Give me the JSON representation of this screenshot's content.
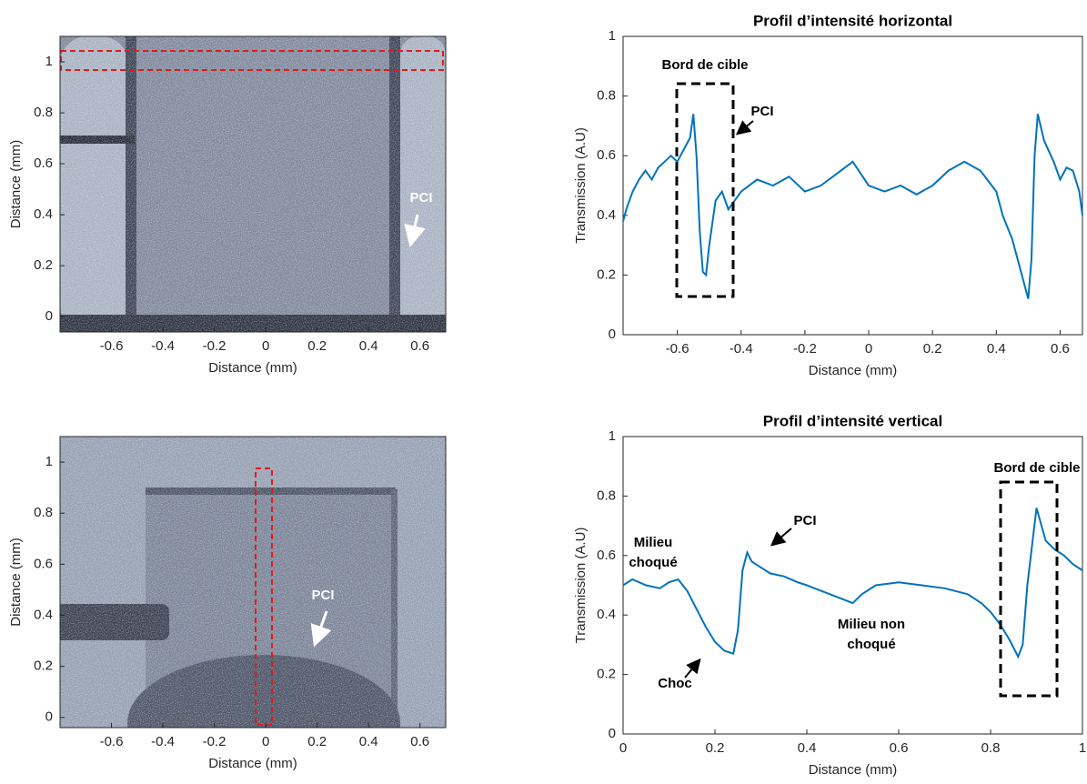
{
  "chart_data": [
    {
      "type": "image",
      "xlabel": "Distance (mm)",
      "ylabel": "Distance (mm)",
      "xlim": [
        -0.8,
        0.7
      ],
      "ylim": [
        -0.06,
        1.1
      ],
      "xticks": [
        -0.6,
        -0.4,
        -0.2,
        0,
        0.2,
        0.4,
        0.6
      ],
      "yticks": [
        0,
        0.2,
        0.4,
        0.6,
        0.8,
        1
      ],
      "annotations": [
        {
          "text": [
            "PCI"
          ]
        }
      ]
    },
    {
      "type": "line",
      "title": "Profil d’intensité horizontal",
      "xlabel": "Distance (mm)",
      "ylabel": "Transmission (A.U)",
      "xlim": [
        -0.77,
        0.67
      ],
      "ylim": [
        0,
        1
      ],
      "xticks": [
        -0.6,
        -0.4,
        -0.2,
        0,
        0.2,
        0.4,
        0.6
      ],
      "yticks": [
        0,
        0.2,
        0.4,
        0.6,
        0.8,
        1
      ],
      "color": "#0072bd",
      "x": [
        -0.77,
        -0.76,
        -0.74,
        -0.72,
        -0.7,
        -0.68,
        -0.66,
        -0.64,
        -0.62,
        -0.6,
        -0.58,
        -0.56,
        -0.55,
        -0.54,
        -0.53,
        -0.52,
        -0.51,
        -0.5,
        -0.48,
        -0.46,
        -0.44,
        -0.42,
        -0.4,
        -0.35,
        -0.3,
        -0.25,
        -0.2,
        -0.15,
        -0.1,
        -0.05,
        0,
        0.05,
        0.1,
        0.15,
        0.2,
        0.25,
        0.3,
        0.35,
        0.4,
        0.42,
        0.45,
        0.48,
        0.5,
        0.51,
        0.52,
        0.53,
        0.55,
        0.58,
        0.6,
        0.62,
        0.64,
        0.66,
        0.67
      ],
      "values": [
        0.38,
        0.42,
        0.48,
        0.52,
        0.55,
        0.52,
        0.56,
        0.58,
        0.6,
        0.58,
        0.62,
        0.66,
        0.74,
        0.6,
        0.35,
        0.21,
        0.2,
        0.3,
        0.45,
        0.48,
        0.42,
        0.45,
        0.48,
        0.52,
        0.5,
        0.53,
        0.48,
        0.5,
        0.54,
        0.58,
        0.5,
        0.48,
        0.5,
        0.47,
        0.5,
        0.55,
        0.58,
        0.55,
        0.48,
        0.4,
        0.32,
        0.2,
        0.12,
        0.25,
        0.6,
        0.74,
        0.65,
        0.58,
        0.52,
        0.56,
        0.55,
        0.48,
        0.4
      ],
      "annotations": [
        {
          "text": [
            "Bord de cible"
          ]
        },
        {
          "text": [
            "PCI"
          ]
        }
      ]
    },
    {
      "type": "image",
      "xlabel": "Distance (mm)",
      "ylabel": "Distance (mm)",
      "xlim": [
        -0.8,
        0.7
      ],
      "ylim": [
        -0.04,
        1.1
      ],
      "xticks": [
        -0.6,
        -0.4,
        -0.2,
        0,
        0.2,
        0.4,
        0.6
      ],
      "yticks": [
        0,
        0.2,
        0.4,
        0.6,
        0.8,
        1
      ],
      "annotations": [
        {
          "text": [
            "PCI"
          ]
        }
      ]
    },
    {
      "type": "line",
      "title": "Profil d’intensité vertical",
      "xlabel": "Distance (mm)",
      "ylabel": "Transmission (A.U)",
      "xlim": [
        0,
        1
      ],
      "ylim": [
        0,
        1
      ],
      "xticks": [
        0,
        0.2,
        0.4,
        0.6,
        0.8,
        1
      ],
      "yticks": [
        0,
        0.2,
        0.4,
        0.6,
        0.8,
        1
      ],
      "color": "#0072bd",
      "x": [
        0,
        0.02,
        0.05,
        0.08,
        0.1,
        0.12,
        0.14,
        0.16,
        0.18,
        0.2,
        0.22,
        0.24,
        0.25,
        0.26,
        0.27,
        0.28,
        0.3,
        0.32,
        0.35,
        0.38,
        0.4,
        0.45,
        0.5,
        0.52,
        0.55,
        0.6,
        0.65,
        0.7,
        0.75,
        0.78,
        0.8,
        0.82,
        0.84,
        0.86,
        0.87,
        0.88,
        0.9,
        0.92,
        0.94,
        0.96,
        0.98,
        1
      ],
      "values": [
        0.5,
        0.52,
        0.5,
        0.49,
        0.51,
        0.52,
        0.48,
        0.42,
        0.36,
        0.31,
        0.28,
        0.27,
        0.35,
        0.55,
        0.61,
        0.58,
        0.56,
        0.54,
        0.53,
        0.51,
        0.5,
        0.47,
        0.44,
        0.47,
        0.5,
        0.51,
        0.5,
        0.49,
        0.47,
        0.44,
        0.41,
        0.37,
        0.32,
        0.26,
        0.3,
        0.5,
        0.76,
        0.65,
        0.62,
        0.6,
        0.57,
        0.55
      ],
      "annotations": [
        {
          "text": [
            "Bord de cible"
          ]
        },
        {
          "text": [
            "PCI"
          ]
        },
        {
          "text": [
            "Milieu",
            "choqué"
          ]
        },
        {
          "text": [
            "Choc"
          ]
        },
        {
          "text": [
            "Milieu non",
            "choqué"
          ]
        }
      ]
    }
  ]
}
